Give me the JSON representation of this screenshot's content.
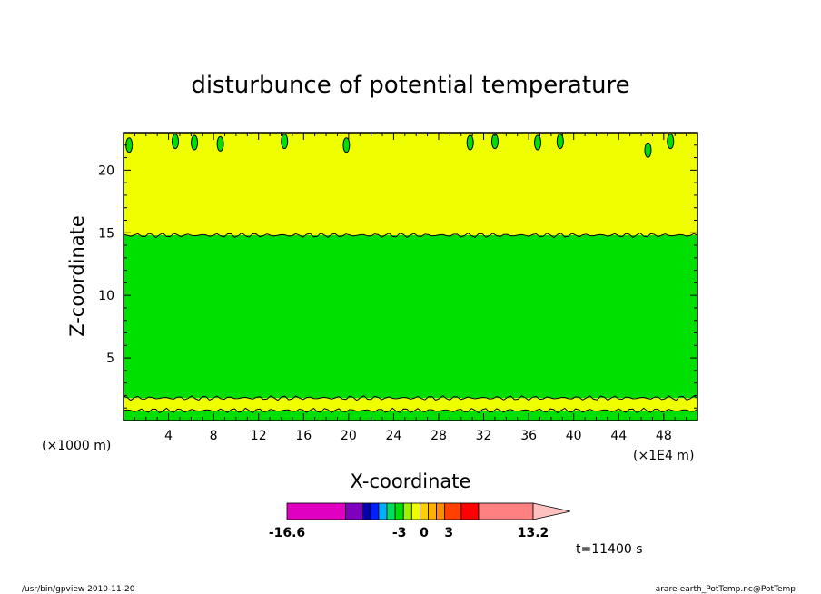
{
  "chart_data": {
    "type": "heatmap",
    "title": "disturbunce of potential temperature",
    "xlabel": "X-coordinate",
    "ylabel": "Z-coordinate",
    "x_unit_left": "(×1000 m)",
    "x_unit_right": "(×1E4 m)",
    "xlim": [
      0,
      51
    ],
    "ylim": [
      0,
      23
    ],
    "xticks": [
      4,
      8,
      12,
      16,
      20,
      24,
      28,
      32,
      36,
      40,
      44,
      48
    ],
    "yticks": [
      5,
      10,
      15,
      20
    ],
    "bands": [
      {
        "from": 0.0,
        "to": 0.8,
        "color": "#00e000"
      },
      {
        "from": 0.8,
        "to": 1.8,
        "color": "#f0ff00"
      },
      {
        "from": 1.8,
        "to": 14.8,
        "color": "#00e000"
      },
      {
        "from": 14.8,
        "to": 23.0,
        "color": "#f0ff00"
      }
    ],
    "blobs": [
      {
        "x": 0.5,
        "z": 22.0
      },
      {
        "x": 4.6,
        "z": 22.3
      },
      {
        "x": 6.3,
        "z": 22.2
      },
      {
        "x": 8.6,
        "z": 22.1
      },
      {
        "x": 14.3,
        "z": 22.3
      },
      {
        "x": 19.8,
        "z": 22.0
      },
      {
        "x": 30.8,
        "z": 22.2
      },
      {
        "x": 33.0,
        "z": 22.3
      },
      {
        "x": 36.8,
        "z": 22.2
      },
      {
        "x": 38.8,
        "z": 22.3
      },
      {
        "x": 46.6,
        "z": 21.6
      },
      {
        "x": 48.6,
        "z": 22.3
      }
    ],
    "colorbar": {
      "segments": [
        {
          "from": -16.6,
          "to": -9.5,
          "color": "#e000c0"
        },
        {
          "from": -9.5,
          "to": -7.4,
          "color": "#8000c0"
        },
        {
          "from": -7.4,
          "to": -6.5,
          "color": "#0000b0"
        },
        {
          "from": -6.5,
          "to": -5.5,
          "color": "#0020ff"
        },
        {
          "from": -5.5,
          "to": -4.5,
          "color": "#00b0ff"
        },
        {
          "from": -4.5,
          "to": -3.5,
          "color": "#00e060"
        },
        {
          "from": -3.5,
          "to": -2.5,
          "color": "#00e000"
        },
        {
          "from": -2.5,
          "to": -1.5,
          "color": "#a0f000"
        },
        {
          "from": -1.5,
          "to": -0.5,
          "color": "#f0ff00"
        },
        {
          "from": -0.5,
          "to": 0.5,
          "color": "#ffd000"
        },
        {
          "from": 0.5,
          "to": 1.5,
          "color": "#ffb000"
        },
        {
          "from": 1.5,
          "to": 2.5,
          "color": "#ff8c00"
        },
        {
          "from": 2.5,
          "to": 4.5,
          "color": "#ff4000"
        },
        {
          "from": 4.5,
          "to": 6.6,
          "color": "#ff0000"
        },
        {
          "from": 6.6,
          "to": 13.2,
          "color": "#ff8080"
        }
      ],
      "arrow_color": "#ffc0c0",
      "labels": [
        "-16.6",
        "-3",
        "0",
        "3",
        "13.2"
      ],
      "label_values": [
        -16.6,
        -3,
        0,
        3,
        13.2
      ]
    }
  },
  "time_label": "t=11400 s",
  "footer_left": "/usr/bin/gpview   2010-11-20",
  "footer_right": "arare-earth_PotTemp.nc@PotTemp"
}
